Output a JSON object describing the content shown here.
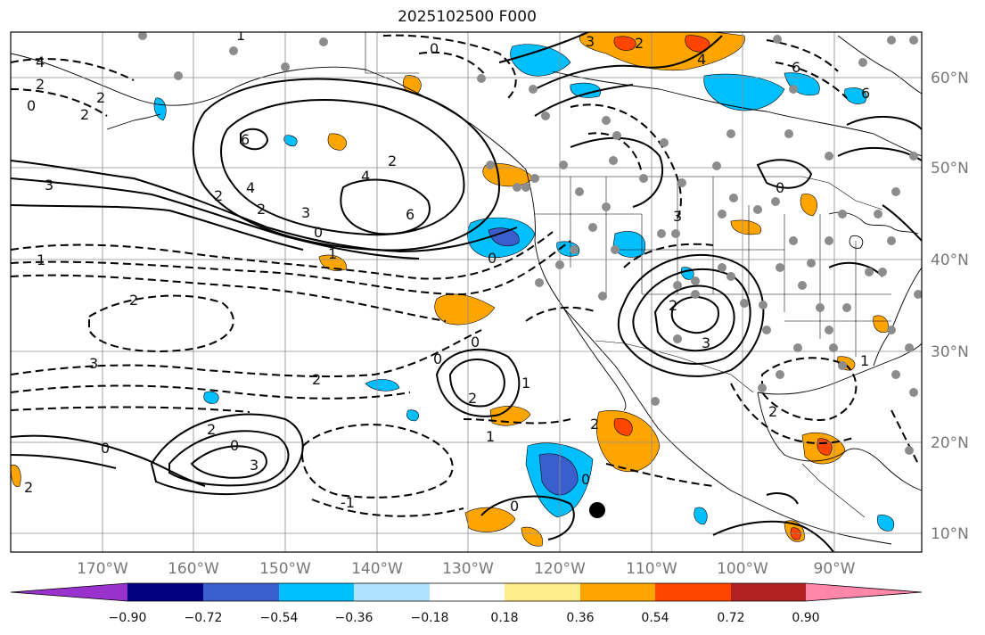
{
  "title": "2025102500 F000",
  "lat_labels": [
    "60°N",
    "50°N",
    "40°N",
    "30°N",
    "20°N",
    "10°N"
  ],
  "lon_labels": [
    "170°W",
    "160°W",
    "150°W",
    "140°W",
    "130°W",
    "120°W",
    "110°W",
    "100°W",
    "90°W"
  ],
  "colorbar": {
    "tick_labels": [
      "−0.90",
      "−0.72",
      "−0.54",
      "−0.36",
      "−0.18",
      "0.18",
      "0.36",
      "0.54",
      "0.72",
      "0.90"
    ],
    "colors": [
      "#9932cc",
      "#000080",
      "#3a5fcd",
      "#00bfff",
      "#b0e2ff",
      "#ffffff",
      "#ffec8b",
      "#ffa500",
      "#ff4500",
      "#b22222",
      "#ff88aa"
    ]
  },
  "contour_labels": [
    "4",
    "2",
    "0",
    "2",
    "1",
    "6",
    "2",
    "4",
    "6",
    "2",
    "3",
    "0",
    "2",
    "3",
    "4",
    "3",
    "2",
    "0",
    "1",
    "2",
    "3",
    "0",
    "2",
    "1",
    "0",
    "2",
    "6",
    "0",
    "1",
    "3",
    "2",
    "3",
    "2",
    "1",
    "0",
    "1",
    "2",
    "0",
    "0",
    "3",
    "2",
    "6",
    "0",
    "4",
    "2",
    "-1",
    "2",
    "0"
  ],
  "colors": {
    "accent": "#000000",
    "grid": "#8c8c8c",
    "axis_text": "#777777"
  }
}
